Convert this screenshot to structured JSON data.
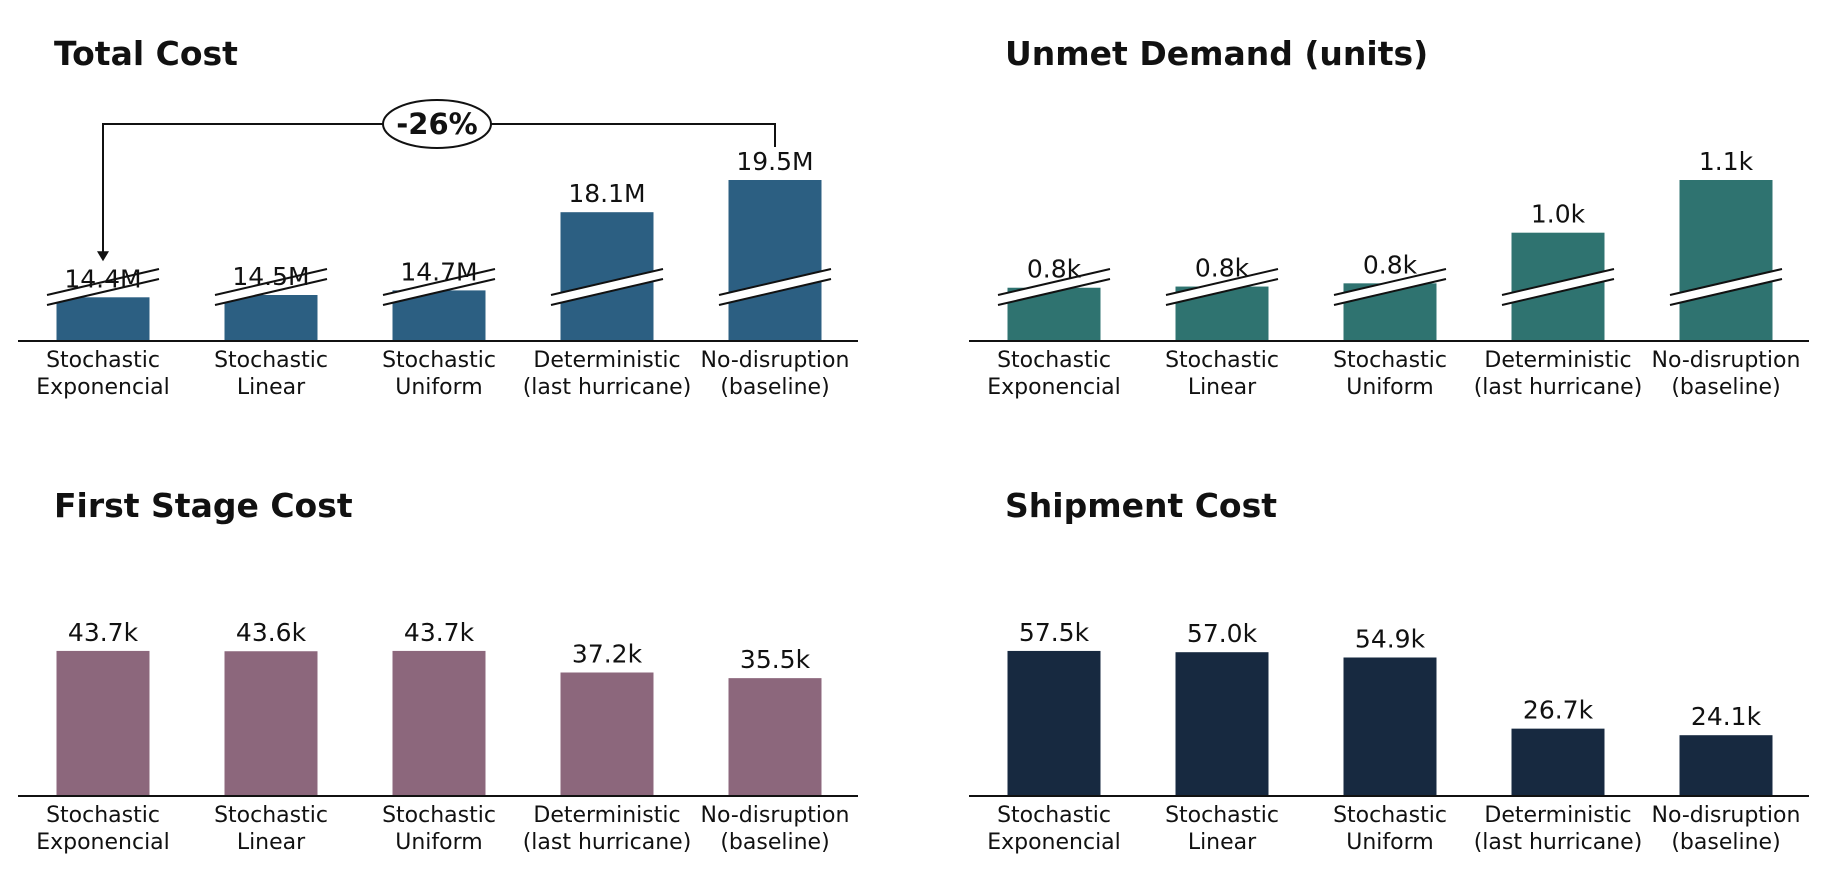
{
  "chart_data": [
    {
      "type": "bar",
      "title": "Total Cost",
      "categories": [
        "Stochastic\nExponencial",
        "Stochastic\nLinear",
        "Stochastic\nUniform",
        "Deterministic\n(last hurricane)",
        "No-disruption\n(baseline)"
      ],
      "values": [
        14.4,
        14.5,
        14.7,
        18.1,
        19.5
      ],
      "value_labels": [
        "14.4M",
        "14.5M",
        "14.7M",
        "18.1M",
        "19.5M"
      ],
      "unit": "M",
      "color": "#2C5F82",
      "axis_break": true,
      "ylim": [
        12.5,
        19.5
      ],
      "annotation": {
        "text": "-26%",
        "from_category": 4,
        "to_category": 0
      }
    },
    {
      "type": "bar",
      "title": "Unmet Demand (units)",
      "categories": [
        "Stochastic\nExponencial",
        "Stochastic\nLinear",
        "Stochastic\nUniform",
        "Deterministic\n(last hurricane)",
        "No-disruption\n(baseline)"
      ],
      "values": [
        0.8,
        0.8,
        0.8,
        1.0,
        1.1
      ],
      "value_labels": [
        "0.8k",
        "0.8k",
        "0.8k",
        "1.0k",
        "1.1k"
      ],
      "unit": "k",
      "color": "#2F7370",
      "axis_break": true,
      "ylim": [
        0.55,
        1.1
      ],
      "display_values": [
        0.732,
        0.736,
        0.747,
        0.92,
        1.1
      ]
    },
    {
      "type": "bar",
      "title": "First Stage Cost",
      "categories": [
        "Stochastic\nExponencial",
        "Stochastic\nLinear",
        "Stochastic\nUniform",
        "Deterministic\n(last hurricane)",
        "No-disruption\n(baseline)"
      ],
      "values": [
        43.7,
        43.6,
        43.7,
        37.2,
        35.5
      ],
      "value_labels": [
        "43.7k",
        "43.6k",
        "43.7k",
        "37.2k",
        "35.5k"
      ],
      "unit": "k",
      "color": "#8C677C",
      "axis_break": false,
      "ylim": [
        0,
        50
      ]
    },
    {
      "type": "bar",
      "title": "Shipment Cost",
      "categories": [
        "Stochastic\nExponencial",
        "Stochastic\nLinear",
        "Stochastic\nUniform",
        "Deterministic\n(last hurricane)",
        "No-disruption\n(baseline)"
      ],
      "values": [
        57.5,
        57.0,
        54.9,
        26.7,
        24.1
      ],
      "value_labels": [
        "57.5k",
        "57.0k",
        "54.9k",
        "26.7k",
        "24.1k"
      ],
      "unit": "k",
      "color": "#172940",
      "axis_break": false,
      "ylim": [
        0,
        65.8
      ]
    }
  ]
}
